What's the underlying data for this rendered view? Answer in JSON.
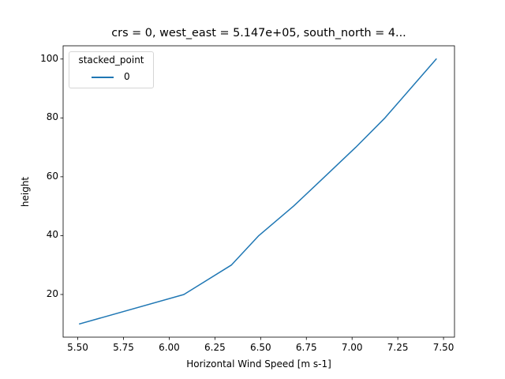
{
  "chart_data": {
    "type": "line",
    "title": "crs = 0, west_east = 5.147e+05, south_north = 4...",
    "xlabel": "Horizontal Wind Speed [m s-1]",
    "ylabel": "height",
    "xlim": [
      5.42,
      7.56
    ],
    "ylim": [
      5.5,
      104.5
    ],
    "xticks": [
      "5.50",
      "5.75",
      "6.00",
      "6.25",
      "6.50",
      "6.75",
      "7.00",
      "7.25",
      "7.50"
    ],
    "yticks": [
      "20",
      "40",
      "60",
      "80",
      "100"
    ],
    "grid": false,
    "legend": {
      "title": "stacked_point",
      "position": "upper left",
      "entries": [
        "0"
      ]
    },
    "series": [
      {
        "name": "0",
        "color": "#1f77b4",
        "x": [
          5.51,
          6.08,
          6.34,
          6.49,
          6.68,
          6.85,
          7.02,
          7.18,
          7.32,
          7.46
        ],
        "y": [
          10,
          20,
          30,
          40,
          50,
          60,
          70,
          80,
          90,
          100
        ]
      }
    ]
  }
}
